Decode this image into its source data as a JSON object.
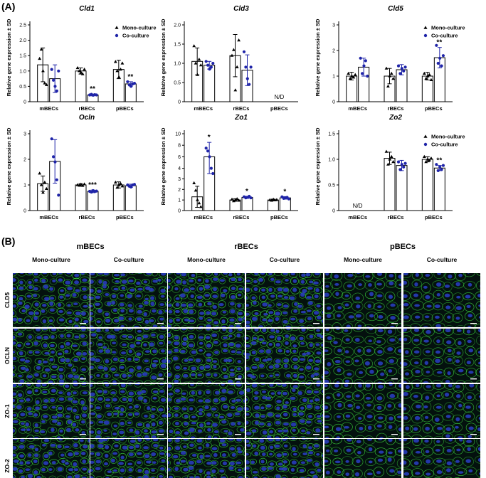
{
  "panels": {
    "a_label": "(A)",
    "b_label": "(B)"
  },
  "colors": {
    "mono": "#000000",
    "co": "#1f24a8",
    "micro_bg": "#04110e",
    "membrane": "#38c23a",
    "nuclei": "#2a3fc6"
  },
  "legend": {
    "mono": "Mono-culture",
    "co": "Co-culture"
  },
  "y_axis_label": "Relative gene expression ± SD",
  "chart_data": [
    {
      "type": "bar",
      "title": "Cld1",
      "categories": [
        "mBECs",
        "rBECs",
        "pBECs"
      ],
      "ylim": [
        0,
        2.5
      ],
      "yticks": [
        "0",
        "0.5",
        "1.0",
        "1.5",
        "2.0",
        "2.5"
      ],
      "series": [
        {
          "name": "Mono-culture",
          "values": [
            1.2,
            1.0,
            1.05
          ],
          "sd": [
            0.55,
            0.1,
            0.3
          ],
          "points": [
            [
              1.4,
              1.7,
              1.0,
              0.6,
              0.55
            ],
            [
              1.1,
              1.0,
              0.95,
              0.9,
              1.05
            ],
            [
              1.3,
              1.0,
              0.8,
              1.05,
              1.25
            ]
          ]
        },
        {
          "name": "Co-culture",
          "values": [
            0.75,
            0.22,
            0.58
          ],
          "sd": [
            0.45,
            0.03,
            0.07
          ],
          "points": [
            [
              1.05,
              0.7,
              0.5,
              0.35,
              1.0
            ],
            [
              0.22,
              0.24,
              0.21,
              0.23,
              0.22
            ],
            [
              0.65,
              0.55,
              0.5,
              0.58,
              0.6
            ]
          ]
        }
      ],
      "significance": [
        "",
        "**",
        "**"
      ],
      "nd": "",
      "legend": true
    },
    {
      "type": "bar",
      "title": "Cld3",
      "categories": [
        "mBECs",
        "rBECs",
        "pBECs"
      ],
      "ylim": [
        0,
        2.0
      ],
      "yticks": [
        "0",
        "0.5",
        "1.0",
        "1.5",
        "2.0"
      ],
      "series": [
        {
          "name": "Mono-culture",
          "values": [
            1.05,
            1.2,
            null
          ],
          "sd": [
            0.35,
            0.55,
            0
          ],
          "points": [
            [
              1.45,
              1.0,
              0.7,
              1.1,
              0.95
            ],
            [
              1.2,
              1.35,
              0.3,
              0.9,
              1.6
            ]
          ]
        },
        {
          "name": "Co-culture",
          "values": [
            0.95,
            0.82,
            null
          ],
          "sd": [
            0.1,
            0.4,
            0
          ],
          "points": [
            [
              1.05,
              0.95,
              0.85,
              0.9,
              1.0
            ],
            [
              1.3,
              0.9,
              0.6,
              0.45,
              0.9
            ]
          ]
        }
      ],
      "significance": [
        "",
        "",
        ""
      ],
      "nd": "N/D",
      "nd_index": 2,
      "legend": false
    },
    {
      "type": "bar",
      "title": "Cld5",
      "categories": [
        "mBECs",
        "rBECs",
        "pBECs"
      ],
      "ylim": [
        0,
        3
      ],
      "yticks": [
        "0",
        "1",
        "2",
        "3"
      ],
      "series": [
        {
          "name": "Mono-culture",
          "values": [
            1.0,
            1.0,
            1.0
          ],
          "sd": [
            0.15,
            0.3,
            0.15
          ],
          "points": [
            [
              1.1,
              0.9,
              1.0,
              0.95,
              1.05
            ],
            [
              1.3,
              0.6,
              1.0,
              1.1,
              0.9
            ],
            [
              1.1,
              0.9,
              1.0,
              1.05,
              0.85
            ]
          ]
        },
        {
          "name": "Co-culture",
          "values": [
            1.35,
            1.25,
            1.72
          ],
          "sd": [
            0.35,
            0.2,
            0.4
          ],
          "points": [
            [
              1.7,
              1.1,
              1.4,
              1.6,
              1.0
            ],
            [
              1.4,
              1.1,
              1.3,
              1.2,
              1.35
            ],
            [
              2.2,
              1.5,
              1.7,
              1.4,
              1.8
            ]
          ]
        }
      ],
      "significance": [
        "",
        "",
        "**"
      ],
      "nd": "",
      "legend": true
    },
    {
      "type": "bar",
      "title": "Ocln",
      "categories": [
        "mBECs",
        "rBECs",
        "pBECs"
      ],
      "ylim": [
        0,
        3
      ],
      "yticks": [
        "0",
        "1",
        "2",
        "3"
      ],
      "series": [
        {
          "name": "Mono-culture",
          "values": [
            1.05,
            1.0,
            1.0
          ],
          "sd": [
            0.3,
            0.05,
            0.12
          ],
          "points": [
            [
              1.45,
              1.0,
              0.7,
              1.1,
              0.85
            ],
            [
              1.0,
              0.98,
              1.02,
              0.97,
              1.03
            ],
            [
              1.1,
              0.9,
              1.0,
              1.05,
              0.95
            ]
          ]
        },
        {
          "name": "Co-culture",
          "values": [
            1.92,
            0.75,
            0.97
          ],
          "sd": [
            0.85,
            0.05,
            0.06
          ],
          "points": [
            [
              2.8,
              2.1,
              1.9,
              1.2,
              0.6
            ],
            [
              0.75,
              0.72,
              0.78,
              0.74,
              0.76
            ],
            [
              1.0,
              0.95,
              0.92,
              1.0,
              1.02
            ]
          ]
        }
      ],
      "significance": [
        "",
        "***",
        ""
      ],
      "nd": "",
      "legend": false
    },
    {
      "type": "bar",
      "title": "Zo1",
      "categories": [
        "mBECs",
        "rBECs",
        "pBECs"
      ],
      "ylim": [
        0,
        10
      ],
      "yticks": [
        "0",
        "1",
        "2",
        "3",
        "4",
        "6",
        "8",
        "10"
      ],
      "series": [
        {
          "name": "Mono-culture",
          "values": [
            1.3,
            1.0,
            1.0
          ],
          "sd": [
            1.0,
            0.12,
            0.08
          ],
          "points": [
            [
              2.6,
              1.9,
              1.0,
              0.7,
              0.35
            ],
            [
              1.05,
              0.9,
              1.0,
              1.1,
              0.95
            ],
            [
              1.0,
              0.95,
              1.05,
              0.98,
              1.02
            ]
          ]
        },
        {
          "name": "Co-culture",
          "values": [
            6.0,
            1.25,
            1.2
          ],
          "sd": [
            2.5,
            0.1,
            0.12
          ],
          "points": [
            [
              7.5,
              7.0,
              6.0,
              4.0,
              3.5
            ],
            [
              1.3,
              1.2,
              1.25,
              1.35,
              1.2
            ],
            [
              1.3,
              1.15,
              1.2,
              1.25,
              1.1
            ]
          ]
        }
      ],
      "significance": [
        "*",
        "*",
        "*"
      ],
      "nd": "",
      "legend": false
    },
    {
      "type": "bar",
      "title": "Zo2",
      "categories": [
        "mBECs",
        "rBECs",
        "pBECs"
      ],
      "ylim": [
        0,
        1.5
      ],
      "yticks": [
        "0",
        "0.5",
        "1.0",
        "1.5"
      ],
      "series": [
        {
          "name": "Mono-culture",
          "values": [
            null,
            1.02,
            1.0
          ],
          "sd": [
            0,
            0.12,
            0.05
          ],
          "points": [
            [],
            [
              1.15,
              0.9,
              1.0,
              1.05,
              0.95
            ],
            [
              1.05,
              0.95,
              1.0,
              0.98,
              1.02
            ]
          ]
        },
        {
          "name": "Co-culture",
          "values": [
            null,
            0.88,
            0.83
          ],
          "sd": [
            0,
            0.1,
            0.05
          ],
          "points": [
            [],
            [
              0.95,
              0.8,
              0.9,
              0.85,
              0.92
            ],
            [
              0.9,
              0.78,
              0.85,
              0.8,
              0.88
            ]
          ]
        }
      ],
      "significance": [
        "",
        "",
        "**"
      ],
      "nd": "N/D",
      "nd_index": 0,
      "legend": true
    }
  ],
  "micrographs": {
    "groups": [
      "mBECs",
      "rBECs",
      "pBECs"
    ],
    "columns": [
      "Mono-culture",
      "Co-culture",
      "Mono-culture",
      "Co-culture",
      "Mono-culture",
      "Co-culture"
    ],
    "rows": [
      "CLD5",
      "OCLN",
      "ZO-1",
      "ZO-2"
    ]
  }
}
